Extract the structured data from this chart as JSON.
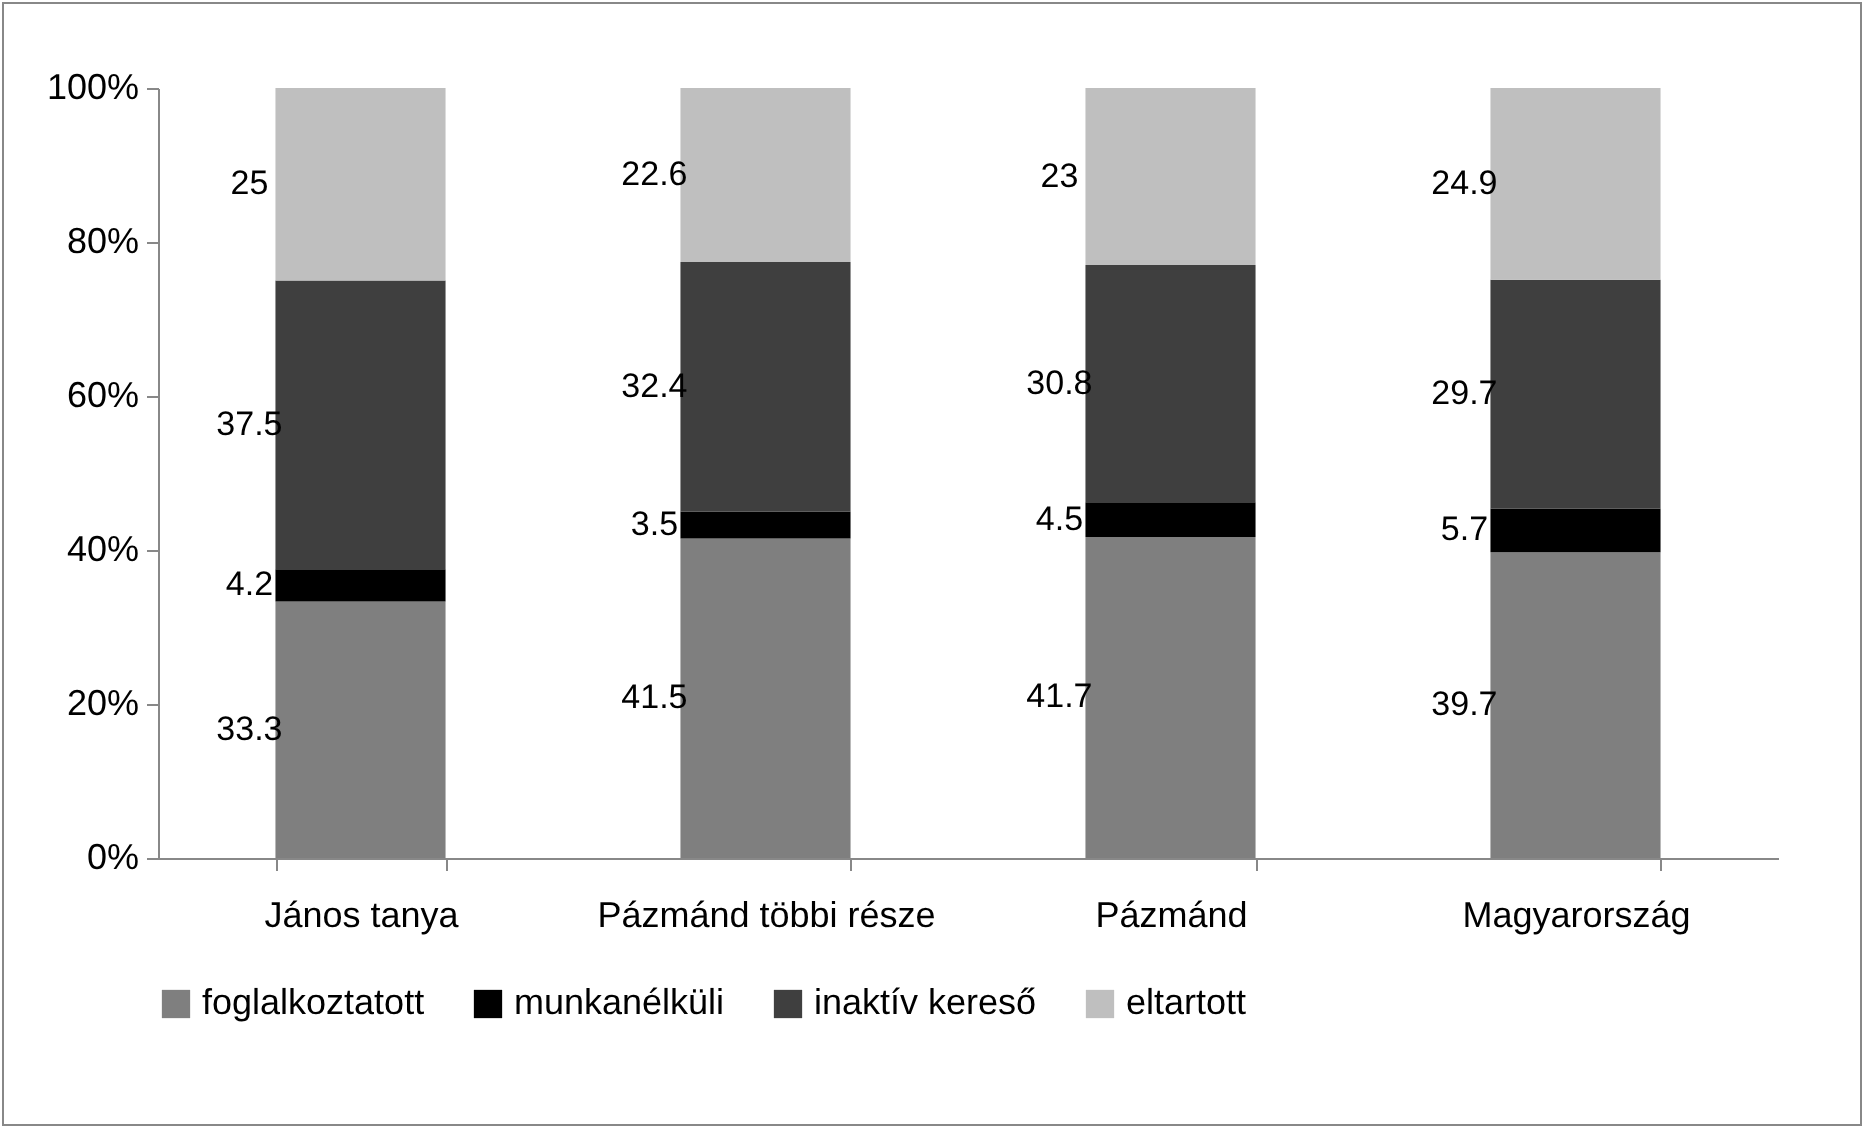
{
  "chart_data": {
    "type": "bar",
    "stacked": true,
    "categories": [
      "János tanya",
      "Pázmánd többi része",
      "Pázmánd",
      "Magyarország"
    ],
    "series": [
      {
        "name": "foglalkoztatott",
        "color": "#7f7f7f",
        "values": [
          33.3,
          41.5,
          41.7,
          39.7
        ]
      },
      {
        "name": "munkanélküli",
        "color": "#000000",
        "values": [
          4.2,
          3.5,
          4.5,
          5.7
        ]
      },
      {
        "name": "inaktív kereső",
        "color": "#3f3f3f",
        "values": [
          37.5,
          32.4,
          30.8,
          29.7
        ]
      },
      {
        "name": "eltartott",
        "color": "#bfbfbf",
        "values": [
          25,
          22.6,
          23,
          24.9
        ]
      }
    ],
    "ylim": [
      0,
      100
    ],
    "yticks": [
      {
        "value": 0,
        "label": "0%"
      },
      {
        "value": 20,
        "label": "20%"
      },
      {
        "value": 40,
        "label": "40%"
      },
      {
        "value": 60,
        "label": "60%"
      },
      {
        "value": 80,
        "label": "80%"
      },
      {
        "value": 100,
        "label": "100%"
      }
    ],
    "data_labels": true,
    "legend": "bottom",
    "grid": false
  }
}
